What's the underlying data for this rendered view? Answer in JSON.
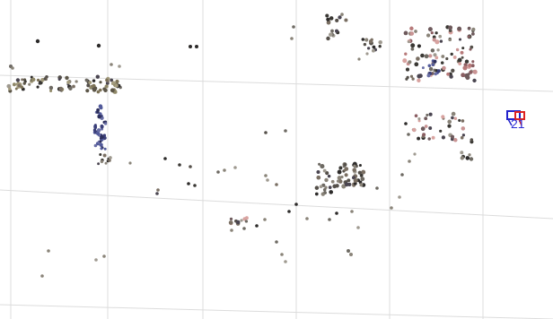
{
  "scene": {
    "background_color": "#ffffff",
    "grid_color": "#dcdcdc",
    "point_palette": [
      "#2d2b2a",
      "#3a3834",
      "#55504a",
      "#6e6a63",
      "#8a8479",
      "#9f9a90",
      "#7a6f63",
      "#4a4550"
    ],
    "cluster_palettes": {
      "blue_column": [
        "#3b3f78",
        "#525a9a",
        "#2d2f5c",
        "#6a6fa6"
      ],
      "pink_block": [
        "#b77a7a",
        "#c99494",
        "#8a5e62",
        "#d8a3a0",
        "#6e5a5c"
      ],
      "beige_strip": [
        "#7d7358",
        "#a39b7d",
        "#5c5648",
        "#8f8868"
      ]
    }
  },
  "marker": {
    "label": "21",
    "primary_color": "#2222cc",
    "accent_color": "#dd2222"
  }
}
